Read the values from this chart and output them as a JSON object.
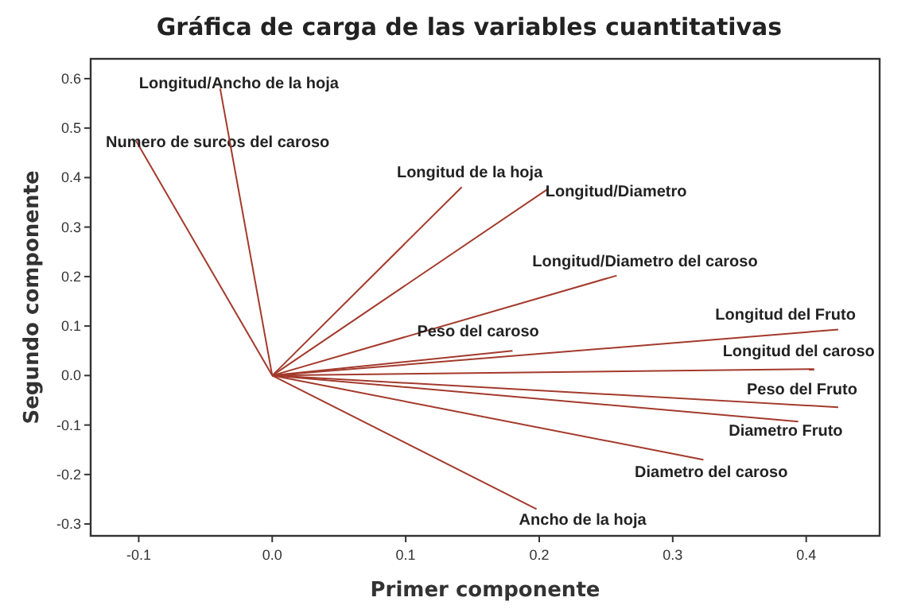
{
  "chart_data": {
    "type": "line",
    "title": "Gráfica de carga de las variables cuantitativas",
    "xlabel": "Primer componente",
    "ylabel": "Segundo componente",
    "xlim": [
      -0.136,
      0.455
    ],
    "ylim": [
      -0.324,
      0.64
    ],
    "xticks": [
      {
        "value": -0.1,
        "label": "-0.1"
      },
      {
        "value": 0,
        "label": "0.0"
      },
      {
        "value": 0.1,
        "label": "0.1"
      },
      {
        "value": 0.2,
        "label": "0.2"
      },
      {
        "value": 0.3,
        "label": "0.3"
      },
      {
        "value": 0.4,
        "label": "0.4"
      }
    ],
    "yticks": [
      {
        "value": -0.3,
        "label": "-0.3"
      },
      {
        "value": -0.2,
        "label": "-0.2"
      },
      {
        "value": -0.1,
        "label": "-0.1"
      },
      {
        "value": 0,
        "label": "0.0"
      },
      {
        "value": 0.1,
        "label": "0.1"
      },
      {
        "value": 0.2,
        "label": "0.2"
      },
      {
        "value": 0.3,
        "label": "0.3"
      },
      {
        "value": 0.4,
        "label": "0.4"
      },
      {
        "value": 0.5,
        "label": "0.5"
      },
      {
        "value": 0.6,
        "label": "0.6"
      }
    ],
    "grid": false,
    "legend": false,
    "marker": "none",
    "line_style": "solid",
    "series": [
      {
        "name": "Numero de surcos del caroso",
        "color": "#a33a2c",
        "x": [
          0,
          -0.102
        ],
        "values": [
          0,
          0.474
        ]
      },
      {
        "name": "Longitud/Ancho de la hoja",
        "color": "#a33a2c",
        "x": [
          0,
          -0.039
        ],
        "values": [
          0,
          0.58
        ]
      },
      {
        "name": "Longitud de la hoja",
        "color": "#a33a2c",
        "x": [
          0,
          0.142
        ],
        "values": [
          0,
          0.381
        ]
      },
      {
        "name": "Longitud/Diametro",
        "color": "#a33a2c",
        "x": [
          0,
          0.207
        ],
        "values": [
          0,
          0.378
        ]
      },
      {
        "name": "Longitud/Diametro del caroso",
        "color": "#a33a2c",
        "x": [
          0,
          0.258
        ],
        "values": [
          0,
          0.202
        ]
      },
      {
        "name": "Peso del caroso",
        "color": "#a33a2c",
        "x": [
          0,
          0.18
        ],
        "values": [
          0,
          0.05
        ]
      },
      {
        "name": "Longitud del Fruto",
        "color": "#a33a2c",
        "x": [
          0,
          0.424
        ],
        "values": [
          0,
          0.093
        ]
      },
      {
        "name": "Longitud del caroso",
        "color": "#a33a2c",
        "x": [
          0,
          0.406
        ],
        "values": [
          0,
          0.013
        ]
      },
      {
        "name": "Peso del Fruto",
        "color": "#a33a2c",
        "x": [
          0,
          0.424
        ],
        "values": [
          0,
          -0.064
        ]
      },
      {
        "name": "Diametro Fruto",
        "color": "#a33a2c",
        "x": [
          0,
          0.394
        ],
        "values": [
          0,
          -0.093
        ]
      },
      {
        "name": "Diametro del caroso",
        "color": "#a33a2c",
        "x": [
          0,
          0.323
        ],
        "values": [
          0,
          -0.17
        ]
      },
      {
        "name": "Ancho de la hoja",
        "color": "#a33a2c",
        "x": [
          0,
          0.198
        ],
        "values": [
          0,
          -0.27
        ]
      }
    ]
  }
}
